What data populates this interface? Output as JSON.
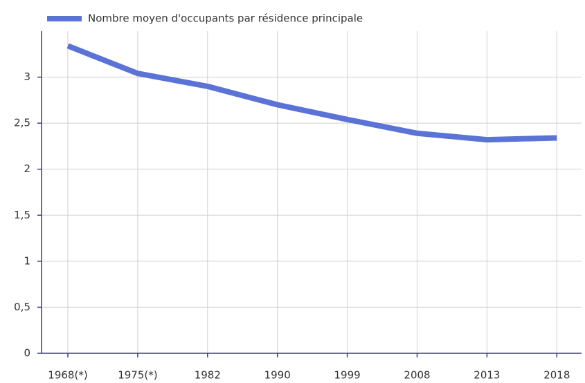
{
  "chart_data": {
    "type": "line",
    "categories": [
      "1968(*)",
      "1975(*)",
      "1982",
      "1990",
      "1999",
      "2008",
      "2013",
      "2018"
    ],
    "series": [
      {
        "name": "Nombre moyen d'occupants par résidence principale",
        "color": "#5b73d6",
        "values": [
          3.34,
          3.04,
          2.9,
          2.7,
          2.54,
          2.39,
          2.32,
          2.34
        ]
      }
    ],
    "ylim": [
      0,
      3.5
    ],
    "yticks": [
      0,
      {
        "value": 0.5,
        "label": "0,5"
      },
      1,
      {
        "value": 1.5,
        "label": "1,5"
      },
      2,
      {
        "value": 2.5,
        "label": "2,5"
      },
      3
    ],
    "grid": true,
    "legend": "top"
  }
}
